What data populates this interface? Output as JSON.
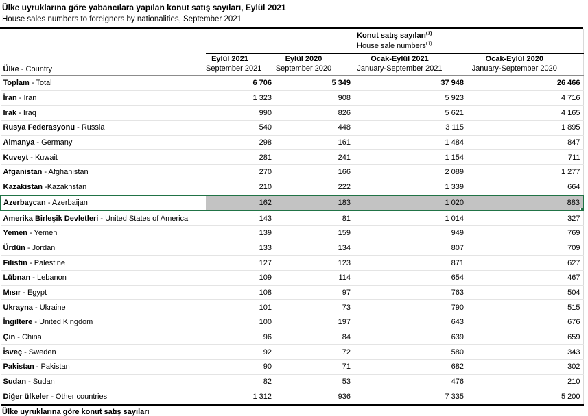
{
  "title": {
    "tr": "Ülke uyruklarına göre yabancılara yapılan konut satış sayıları, Eylül 2021",
    "en": "House sales numbers to foreigners by nationalities, September 2021"
  },
  "table": {
    "group_header": {
      "tr": "Konut satış sayıları",
      "en": "House sale numbers",
      "footnote_mark": "(1)"
    },
    "country_col_header": {
      "tr": "Ülke",
      "rest": " - Country"
    },
    "columns": [
      {
        "tr": "Eylül 2021",
        "en": "September 2021"
      },
      {
        "tr": "Eylül 2020",
        "en": "September 2020"
      },
      {
        "tr": "Ocak-Eylül 2021",
        "en": "January-September 2021"
      },
      {
        "tr": "Ocak-Eylül 2020",
        "en": "January-September 2020"
      }
    ],
    "rows": [
      {
        "tr": "Toplam",
        "rest": " - Total",
        "values": [
          "6 706",
          "5 349",
          "37 948",
          "26 466"
        ],
        "bold": true
      },
      {
        "tr": "İran",
        "rest": " - Iran",
        "values": [
          "1 323",
          "908",
          "5 923",
          "4 716"
        ]
      },
      {
        "tr": "Irak",
        "rest": " - Iraq",
        "values": [
          "990",
          "826",
          "5 621",
          "4 165"
        ]
      },
      {
        "tr": "Rusya Federasyonu",
        "rest": " - Russia",
        "values": [
          "540",
          "448",
          "3 115",
          "1 895"
        ]
      },
      {
        "tr": "Almanya",
        "rest": " - Germany",
        "values": [
          "298",
          "161",
          "1 484",
          "847"
        ]
      },
      {
        "tr": "Kuveyt",
        "rest": " - Kuwait",
        "values": [
          "281",
          "241",
          "1 154",
          "711"
        ]
      },
      {
        "tr": "Afganistan",
        "rest": " - Afghanistan",
        "values": [
          "270",
          "166",
          "2 089",
          "1 277"
        ]
      },
      {
        "tr": "Kazakistan",
        "rest": " -Kazakhstan",
        "values": [
          "210",
          "222",
          "1 339",
          "664"
        ]
      },
      {
        "tr": "Azerbaycan",
        "rest": " - Azerbaijan",
        "values": [
          "162",
          "183",
          "1 020",
          "883"
        ],
        "highlight": true
      },
      {
        "tr": "Amerika Birleşik Devletleri",
        "rest": " - United States of America",
        "values": [
          "143",
          "81",
          "1 014",
          "327"
        ]
      },
      {
        "tr": "Yemen",
        "rest": " - Yemen",
        "values": [
          "139",
          "159",
          "949",
          "769"
        ]
      },
      {
        "tr": "Ürdün",
        "rest": " - Jordan",
        "values": [
          "133",
          "134",
          "807",
          "709"
        ]
      },
      {
        "tr": "Filistin",
        "rest": " - Palestine",
        "values": [
          "127",
          "123",
          "871",
          "627"
        ]
      },
      {
        "tr": "Lübnan",
        "rest": " - Lebanon",
        "values": [
          "109",
          "114",
          "654",
          "467"
        ]
      },
      {
        "tr": "Mısır",
        "rest": " - Egypt",
        "values": [
          "108",
          "97",
          "763",
          "504"
        ]
      },
      {
        "tr": "Ukrayna",
        "rest": " - Ukraine",
        "values": [
          "101",
          "73",
          "790",
          "515"
        ]
      },
      {
        "tr": "İngiltere",
        "rest": " - United Kingdom",
        "values": [
          "100",
          "197",
          "643",
          "676"
        ]
      },
      {
        "tr": "Çin",
        "rest": " - China",
        "values": [
          "96",
          "84",
          "639",
          "659"
        ]
      },
      {
        "tr": "İsveç",
        "rest": " - Sweden",
        "values": [
          "92",
          "72",
          "580",
          "343"
        ]
      },
      {
        "tr": "Pakistan",
        "rest": " - Pakistan",
        "values": [
          "90",
          "71",
          "682",
          "302"
        ]
      },
      {
        "tr": "Sudan",
        "rest": " - Sudan",
        "values": [
          "82",
          "53",
          "476",
          "210"
        ]
      },
      {
        "tr": "Diğer ülkeler",
        "rest": " - Other countries",
        "values": [
          "1 312",
          "936",
          "7 335",
          "5 200"
        ]
      }
    ]
  },
  "footnote_clipped": "Ülke uyruklarına göre konut satış sayıları",
  "colors": {
    "highlight_border": "#217346",
    "highlight_fill": "#c3c3c3"
  }
}
